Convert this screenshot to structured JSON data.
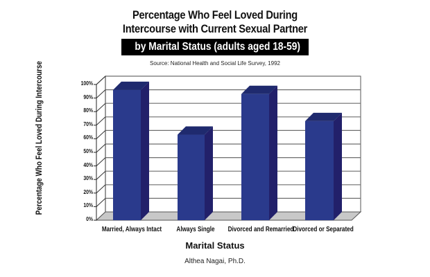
{
  "header": {
    "title_line1": "Percentage Who Feel Loved During",
    "title_line2": "Intercourse with Current Sexual Partner",
    "banner": "by Marital Status (adults aged 18-59)",
    "source": "Source: National Health and Social Life Survey, 1992"
  },
  "axes": {
    "ylabel": "Percentage Who Feel Loved During Intercourse",
    "xlabel": "Marital Status",
    "yticks": [
      "100%",
      "90%",
      "80%",
      "70%",
      "60%",
      "50%",
      "40%",
      "30%",
      "20%",
      "10%",
      "0%"
    ]
  },
  "categories": [
    "Married, Always Intact",
    "Always Single",
    "Divorced and Remarried",
    "Divorced or Separated"
  ],
  "footer": {
    "author": "Althea Nagai, Ph.D."
  },
  "colors": {
    "bar_front": "#2a3a8c",
    "bar_side": "#22206a",
    "bar_top": "#1f2a6e",
    "floor": "#c8c8c8",
    "grid": "#6e6e6e"
  },
  "chart_data": {
    "type": "bar",
    "title": "Percentage Who Feel Loved During Intercourse with Current Sexual Partner",
    "subtitle": "by Marital Status (adults aged 18-59)",
    "annotation": "Source: National Health and Social Life Survey, 1992",
    "categories": [
      "Married, Always Intact",
      "Always Single",
      "Divorced and Remarried",
      "Divorced or Separated"
    ],
    "values": [
      96,
      63,
      93,
      73
    ],
    "xlabel": "Marital Status",
    "ylabel": "Percentage Who Feel Loved During Intercourse",
    "ylim": [
      0,
      100
    ],
    "yticks": [
      0,
      10,
      20,
      30,
      40,
      50,
      60,
      70,
      80,
      90,
      100
    ],
    "unit": "%",
    "grid": true,
    "legend": null,
    "style": "3d-column"
  }
}
